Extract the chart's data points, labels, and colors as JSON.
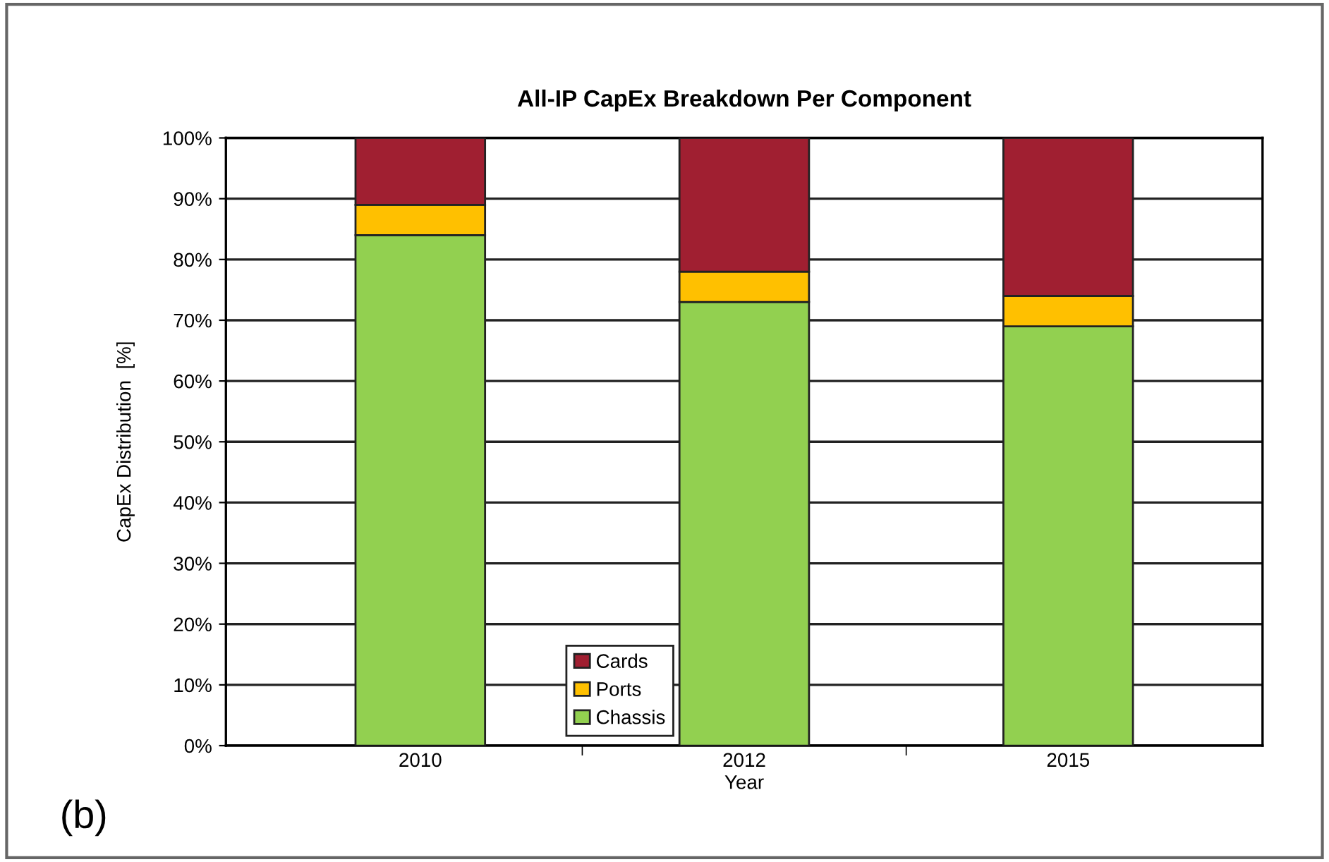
{
  "chart_data": {
    "type": "bar",
    "title": "All-IP CapEx Breakdown Per Component",
    "xlabel": "Year",
    "ylabel": "CapEx Distribution  [%]",
    "categories": [
      "2010",
      "2012",
      "2015"
    ],
    "stacked": true,
    "series": [
      {
        "name": "Chassis",
        "color": "#92d050",
        "values": [
          84,
          73,
          69
        ]
      },
      {
        "name": "Ports",
        "color": "#ffc000",
        "values": [
          5,
          5,
          5
        ]
      },
      {
        "name": "Cards",
        "color": "#a01f31",
        "values": [
          11,
          22,
          26
        ]
      }
    ],
    "ylim": [
      0,
      100
    ],
    "yticks": [
      {
        "value": 0,
        "label": "0%"
      },
      {
        "value": 10,
        "label": "10%"
      },
      {
        "value": 20,
        "label": "20%"
      },
      {
        "value": 30,
        "label": "30%"
      },
      {
        "value": 40,
        "label": "40%"
      },
      {
        "value": 50,
        "label": "50%"
      },
      {
        "value": 60,
        "label": "60%"
      },
      {
        "value": 70,
        "label": "70%"
      },
      {
        "value": 80,
        "label": "80%"
      },
      {
        "value": 90,
        "label": "90%"
      },
      {
        "value": 100,
        "label": "100%"
      }
    ],
    "grid": "y",
    "legend": "bottom",
    "annotations": [
      "(b)"
    ]
  }
}
